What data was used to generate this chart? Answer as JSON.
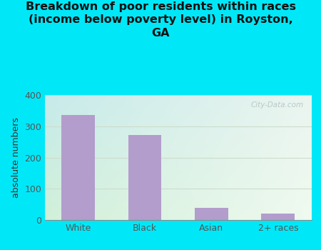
{
  "categories": [
    "White",
    "Black",
    "Asian",
    "2+ races"
  ],
  "values": [
    335,
    271,
    40,
    20
  ],
  "bar_color": "#b39dcc",
  "title_line1": "Breakdown of poor residents within races",
  "title_line2": "(income below poverty level) in Royston,",
  "title_line3": "GA",
  "ylabel": "absolute numbers",
  "ylim": [
    0,
    400
  ],
  "yticks": [
    0,
    100,
    200,
    300,
    400
  ],
  "outer_bg": "#00e8f8",
  "title_fontsize": 11.5,
  "title_color": "#111111",
  "watermark": "City-Data.com",
  "bg_color_topleft": "#c8eaea",
  "bg_color_topright": "#e8f5ee",
  "bg_color_bottomleft": "#d8f0e0",
  "bg_color_bottomright": "#f0faf0",
  "grid_color": "#ccddcc",
  "tick_color": "#555555",
  "label_color": "#333333"
}
